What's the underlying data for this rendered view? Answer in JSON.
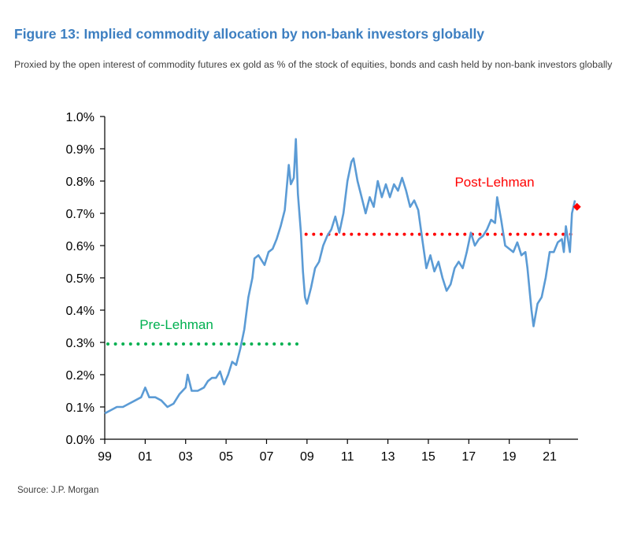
{
  "title": "Figure 13: Implied commodity allocation by non-bank investors globally",
  "subtitle": "Proxied by the open interest of commodity futures ex gold as % of the stock of equities, bonds and cash held by non-bank investors globally",
  "source": "Source: J.P. Morgan",
  "colors": {
    "title": "#3d7fc1",
    "series": "#5b9bd5",
    "pre_lehman": "#00b050",
    "post_lehman": "#ff0000"
  },
  "chart_data": {
    "type": "line",
    "title": "",
    "xlabel": "",
    "ylabel": "",
    "xlim": [
      1999,
      2022.4
    ],
    "ylim": [
      0.0,
      1.0
    ],
    "x_ticks": [
      1999,
      2001,
      2003,
      2005,
      2007,
      2009,
      2011,
      2013,
      2015,
      2017,
      2019,
      2021
    ],
    "x_tick_labels": [
      "99",
      "01",
      "03",
      "05",
      "07",
      "09",
      "11",
      "13",
      "15",
      "17",
      "19",
      "21"
    ],
    "y_ticks": [
      0.0,
      0.1,
      0.2,
      0.3,
      0.4,
      0.5,
      0.6,
      0.7,
      0.8,
      0.9,
      1.0
    ],
    "y_tick_labels": [
      "0.0%",
      "0.1%",
      "0.2%",
      "0.3%",
      "0.4%",
      "0.5%",
      "0.6%",
      "0.7%",
      "0.8%",
      "0.9%",
      "1.0%"
    ],
    "grid": false,
    "series": [
      {
        "color": "#5b9bd5",
        "points": [
          [
            1999.0,
            0.08
          ],
          [
            1999.3,
            0.09
          ],
          [
            1999.6,
            0.1
          ],
          [
            1999.9,
            0.1
          ],
          [
            2000.2,
            0.11
          ],
          [
            2000.5,
            0.12
          ],
          [
            2000.8,
            0.13
          ],
          [
            2001.0,
            0.16
          ],
          [
            2001.2,
            0.13
          ],
          [
            2001.5,
            0.13
          ],
          [
            2001.8,
            0.12
          ],
          [
            2002.1,
            0.1
          ],
          [
            2002.4,
            0.11
          ],
          [
            2002.7,
            0.14
          ],
          [
            2003.0,
            0.16
          ],
          [
            2003.1,
            0.2
          ],
          [
            2003.3,
            0.15
          ],
          [
            2003.6,
            0.15
          ],
          [
            2003.9,
            0.16
          ],
          [
            2004.1,
            0.18
          ],
          [
            2004.3,
            0.19
          ],
          [
            2004.5,
            0.19
          ],
          [
            2004.7,
            0.21
          ],
          [
            2004.9,
            0.17
          ],
          [
            2005.1,
            0.2
          ],
          [
            2005.3,
            0.24
          ],
          [
            2005.5,
            0.23
          ],
          [
            2005.7,
            0.28
          ],
          [
            2005.9,
            0.34
          ],
          [
            2006.1,
            0.44
          ],
          [
            2006.3,
            0.5
          ],
          [
            2006.4,
            0.56
          ],
          [
            2006.6,
            0.57
          ],
          [
            2006.9,
            0.54
          ],
          [
            2007.1,
            0.58
          ],
          [
            2007.3,
            0.59
          ],
          [
            2007.5,
            0.62
          ],
          [
            2007.7,
            0.66
          ],
          [
            2007.9,
            0.71
          ],
          [
            2008.1,
            0.85
          ],
          [
            2008.2,
            0.79
          ],
          [
            2008.35,
            0.81
          ],
          [
            2008.45,
            0.93
          ],
          [
            2008.55,
            0.76
          ],
          [
            2008.7,
            0.64
          ],
          [
            2008.8,
            0.52
          ],
          [
            2008.9,
            0.44
          ],
          [
            2009.0,
            0.42
          ],
          [
            2009.2,
            0.47
          ],
          [
            2009.4,
            0.53
          ],
          [
            2009.6,
            0.55
          ],
          [
            2009.8,
            0.6
          ],
          [
            2010.0,
            0.63
          ],
          [
            2010.2,
            0.65
          ],
          [
            2010.4,
            0.69
          ],
          [
            2010.6,
            0.64
          ],
          [
            2010.8,
            0.7
          ],
          [
            2011.0,
            0.8
          ],
          [
            2011.2,
            0.86
          ],
          [
            2011.3,
            0.87
          ],
          [
            2011.5,
            0.8
          ],
          [
            2011.7,
            0.75
          ],
          [
            2011.9,
            0.7
          ],
          [
            2012.1,
            0.75
          ],
          [
            2012.3,
            0.72
          ],
          [
            2012.5,
            0.8
          ],
          [
            2012.7,
            0.75
          ],
          [
            2012.9,
            0.79
          ],
          [
            2013.1,
            0.75
          ],
          [
            2013.3,
            0.79
          ],
          [
            2013.5,
            0.77
          ],
          [
            2013.7,
            0.81
          ],
          [
            2013.9,
            0.77
          ],
          [
            2014.1,
            0.72
          ],
          [
            2014.3,
            0.74
          ],
          [
            2014.5,
            0.71
          ],
          [
            2014.7,
            0.62
          ],
          [
            2014.9,
            0.53
          ],
          [
            2015.1,
            0.57
          ],
          [
            2015.3,
            0.52
          ],
          [
            2015.5,
            0.55
          ],
          [
            2015.7,
            0.5
          ],
          [
            2015.9,
            0.46
          ],
          [
            2016.1,
            0.48
          ],
          [
            2016.3,
            0.53
          ],
          [
            2016.5,
            0.55
          ],
          [
            2016.7,
            0.53
          ],
          [
            2016.9,
            0.58
          ],
          [
            2017.1,
            0.64
          ],
          [
            2017.3,
            0.6
          ],
          [
            2017.5,
            0.62
          ],
          [
            2017.7,
            0.63
          ],
          [
            2017.9,
            0.65
          ],
          [
            2018.1,
            0.68
          ],
          [
            2018.3,
            0.67
          ],
          [
            2018.4,
            0.75
          ],
          [
            2018.6,
            0.68
          ],
          [
            2018.8,
            0.6
          ],
          [
            2019.0,
            0.59
          ],
          [
            2019.2,
            0.58
          ],
          [
            2019.4,
            0.61
          ],
          [
            2019.6,
            0.57
          ],
          [
            2019.8,
            0.58
          ],
          [
            2019.9,
            0.53
          ],
          [
            2020.1,
            0.4
          ],
          [
            2020.2,
            0.35
          ],
          [
            2020.4,
            0.42
          ],
          [
            2020.6,
            0.44
          ],
          [
            2020.8,
            0.5
          ],
          [
            2021.0,
            0.58
          ],
          [
            2021.2,
            0.58
          ],
          [
            2021.4,
            0.61
          ],
          [
            2021.6,
            0.62
          ],
          [
            2021.7,
            0.58
          ],
          [
            2021.8,
            0.66
          ],
          [
            2022.0,
            0.58
          ],
          [
            2022.1,
            0.7
          ],
          [
            2022.25,
            0.74
          ]
        ]
      }
    ],
    "reference_lines": [
      {
        "label": "Pre-Lehman",
        "value": 0.295,
        "x_range": [
          1999.0,
          2008.8
        ],
        "color": "#00b050",
        "style": "dotted"
      },
      {
        "label": "Post-Lehman",
        "value": 0.635,
        "x_range": [
          2008.8,
          2022.1
        ],
        "color": "#ff0000",
        "style": "dotted"
      }
    ],
    "markers": [
      {
        "x": 2022.35,
        "y": 0.72,
        "shape": "diamond",
        "color": "#ff0000"
      }
    ]
  }
}
